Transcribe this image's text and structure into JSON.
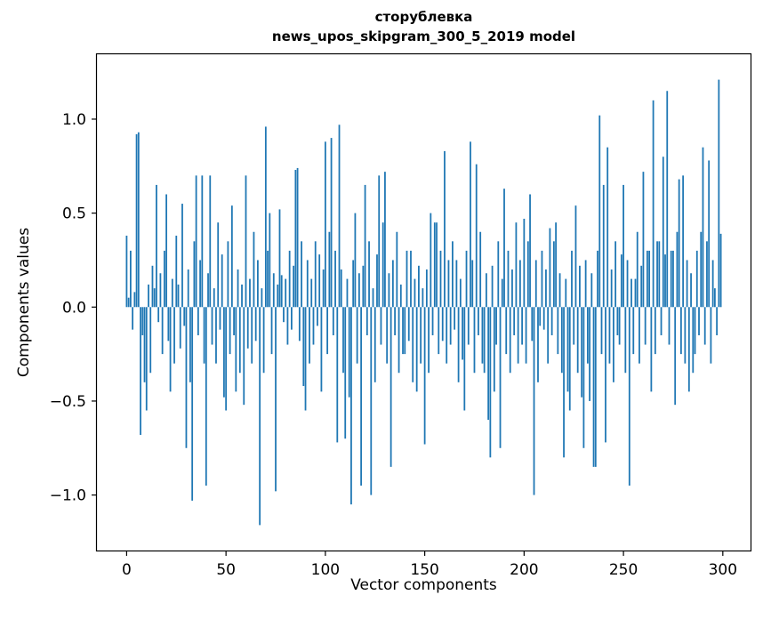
{
  "figure": {
    "title_line1": "сторублевка",
    "title_line2": "news_upos_skipgram_300_5_2019 model",
    "xlabel": "Vector components",
    "ylabel": "Components values"
  },
  "chart_data": {
    "type": "bar",
    "title": "сторублевка — news_upos_skipgram_300_5_2019 model",
    "xlabel": "Vector components",
    "ylabel": "Components values",
    "bar_color": "#1f77b4",
    "axis_color": "#000000",
    "background_color": "#ffffff",
    "grid": false,
    "legend": "none",
    "xlim": [
      -15.4,
      314.4
    ],
    "ylim": [
      -1.3,
      1.35
    ],
    "x_ticks": [
      0,
      50,
      100,
      150,
      200,
      250,
      300
    ],
    "x_tick_labels": [
      "0",
      "50",
      "100",
      "150",
      "200",
      "250",
      "300"
    ],
    "y_ticks": [
      -1.0,
      -0.5,
      0.0,
      0.5,
      1.0
    ],
    "y_tick_labels": [
      "−1.0",
      "−0.5",
      "0.0",
      "0.5",
      "1.0"
    ],
    "n_components": 300,
    "values": [
      0.38,
      0.05,
      0.3,
      -0.12,
      0.08,
      0.92,
      0.93,
      -0.68,
      -0.15,
      -0.4,
      -0.55,
      0.12,
      -0.35,
      0.22,
      0.1,
      0.65,
      -0.08,
      0.18,
      -0.25,
      0.3,
      0.6,
      -0.18,
      -0.45,
      0.15,
      -0.3,
      0.38,
      0.12,
      -0.22,
      0.55,
      -0.1,
      -0.75,
      0.2,
      -0.4,
      -1.03,
      0.35,
      0.7,
      -0.15,
      0.25,
      0.7,
      -0.3,
      -0.95,
      0.18,
      0.7,
      -0.2,
      0.1,
      -0.3,
      0.45,
      -0.12,
      0.28,
      -0.48,
      -0.55,
      0.35,
      -0.25,
      0.54,
      -0.15,
      -0.45,
      0.2,
      -0.35,
      0.12,
      -0.52,
      0.7,
      -0.22,
      0.15,
      -0.3,
      0.4,
      -0.18,
      0.25,
      -1.16,
      0.1,
      -0.35,
      0.96,
      0.3,
      0.5,
      -0.25,
      0.18,
      -0.98,
      0.12,
      0.52,
      0.17,
      -0.08,
      0.15,
      -0.2,
      0.3,
      -0.12,
      0.22,
      0.73,
      0.74,
      -0.18,
      0.35,
      -0.42,
      -0.55,
      0.25,
      -0.3,
      0.15,
      -0.2,
      0.35,
      -0.1,
      0.28,
      -0.45,
      0.2,
      0.88,
      -0.25,
      0.4,
      0.9,
      -0.15,
      0.3,
      -0.72,
      0.97,
      0.2,
      -0.35,
      -0.7,
      0.15,
      -0.48,
      -1.05,
      0.25,
      0.5,
      -0.3,
      0.18,
      -0.95,
      0.22,
      0.65,
      -0.15,
      0.35,
      -1.0,
      0.1,
      -0.4,
      0.28,
      0.7,
      -0.2,
      0.45,
      0.72,
      -0.3,
      0.18,
      -0.85,
      0.25,
      -0.15,
      0.4,
      -0.35,
      0.12,
      -0.25,
      -0.25,
      0.3,
      -0.18,
      0.3,
      -0.4,
      0.15,
      -0.45,
      0.22,
      -0.3,
      0.1,
      -0.73,
      0.2,
      -0.35,
      0.5,
      -0.15,
      0.45,
      0.45,
      -0.25,
      0.3,
      -0.18,
      0.83,
      -0.3,
      0.25,
      -0.2,
      0.35,
      -0.12,
      0.25,
      -0.4,
      0.15,
      -0.28,
      -0.55,
      0.3,
      -0.2,
      0.88,
      0.25,
      -0.35,
      0.76,
      -0.15,
      0.4,
      -0.3,
      -0.35,
      0.18,
      -0.6,
      -0.8,
      0.22,
      -0.45,
      -0.2,
      0.35,
      -0.75,
      0.15,
      0.63,
      -0.25,
      0.3,
      -0.35,
      0.2,
      -0.15,
      0.45,
      -0.3,
      0.25,
      -0.2,
      0.47,
      -0.3,
      0.35,
      0.6,
      -0.18,
      -1.0,
      0.25,
      -0.4,
      -0.1,
      0.3,
      -0.12,
      0.2,
      -0.3,
      0.42,
      -0.15,
      0.35,
      0.45,
      -0.25,
      0.18,
      -0.35,
      -0.8,
      0.15,
      -0.45,
      -0.55,
      0.3,
      -0.2,
      0.54,
      -0.35,
      0.22,
      -0.48,
      -0.75,
      0.25,
      -0.3,
      -0.5,
      0.18,
      -0.85,
      -0.85,
      0.3,
      1.02,
      -0.25,
      0.65,
      -0.72,
      0.85,
      -0.3,
      0.2,
      -0.4,
      0.35,
      -0.15,
      -0.2,
      0.28,
      0.65,
      -0.35,
      0.25,
      -0.95,
      0.15,
      -0.25,
      0.15,
      0.4,
      -0.3,
      0.22,
      0.72,
      -0.2,
      0.3,
      0.3,
      -0.45,
      1.1,
      -0.25,
      0.35,
      0.35,
      -0.15,
      0.8,
      0.28,
      1.15,
      -0.2,
      0.3,
      0.3,
      -0.52,
      0.4,
      0.68,
      -0.25,
      0.7,
      -0.3,
      0.25,
      -0.45,
      0.18,
      -0.35,
      -0.25,
      0.3,
      -0.15,
      0.4,
      0.85,
      -0.2,
      0.35,
      0.78,
      -0.3,
      0.25,
      0.1,
      -0.15,
      1.21,
      0.39
    ]
  }
}
